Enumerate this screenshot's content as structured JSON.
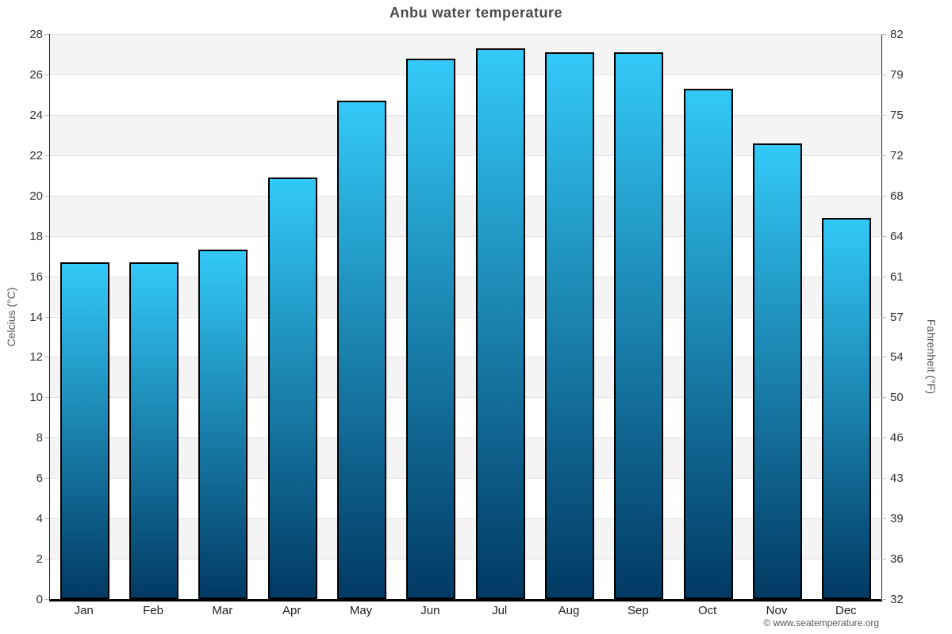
{
  "title": "Anbu water temperature",
  "watermark": "© www.seatemperature.org",
  "axes": {
    "left": {
      "label": "Celcius (°C)",
      "ticks": [
        "0",
        "2",
        "4",
        "6",
        "8",
        "10",
        "12",
        "14",
        "16",
        "18",
        "20",
        "22",
        "24",
        "26",
        "28"
      ]
    },
    "right": {
      "label": "Fahrenheit (°F)",
      "ticks": [
        "32",
        "36",
        "39",
        "43",
        "46",
        "50",
        "54",
        "57",
        "61",
        "64",
        "68",
        "72",
        "75",
        "79",
        "82"
      ]
    },
    "x": {
      "labels": [
        "Jan",
        "Feb",
        "Mar",
        "Apr",
        "May",
        "Jun",
        "Jul",
        "Aug",
        "Sep",
        "Oct",
        "Nov",
        "Dec"
      ]
    }
  },
  "chart_data": {
    "type": "bar",
    "title": "Anbu water temperature",
    "categories": [
      "Jan",
      "Feb",
      "Mar",
      "Apr",
      "May",
      "Jun",
      "Jul",
      "Aug",
      "Sep",
      "Oct",
      "Nov",
      "Dec"
    ],
    "values": [
      16.7,
      16.7,
      17.3,
      20.9,
      24.7,
      26.8,
      27.3,
      27.1,
      27.1,
      25.3,
      22.6,
      18.9
    ],
    "values_fahrenheit": [
      62.1,
      62.1,
      63.1,
      69.6,
      76.5,
      80.2,
      81.1,
      80.8,
      80.8,
      77.5,
      72.7,
      66.0
    ],
    "xlabel": "",
    "ylabel_left": "Celcius (°C)",
    "ylabel_right": "Fahrenheit (°F)",
    "ylim": [
      0,
      28
    ],
    "ylim_fahrenheit": [
      32,
      82
    ],
    "grid": "horizontal-bands-every-2C",
    "legend": "none"
  },
  "colors": {
    "bar_gradient_top": "#33c9f8",
    "bar_gradient_bottom": "#013a63",
    "bar_border": "#000000",
    "band_gray": "#f4f4f4",
    "band_white": "#ffffff",
    "gridline": "#e2e2e2",
    "title_text": "#4a4a4a",
    "tick_text": "#333333",
    "axis_title_text": "#555555",
    "watermark_text": "#555555"
  }
}
